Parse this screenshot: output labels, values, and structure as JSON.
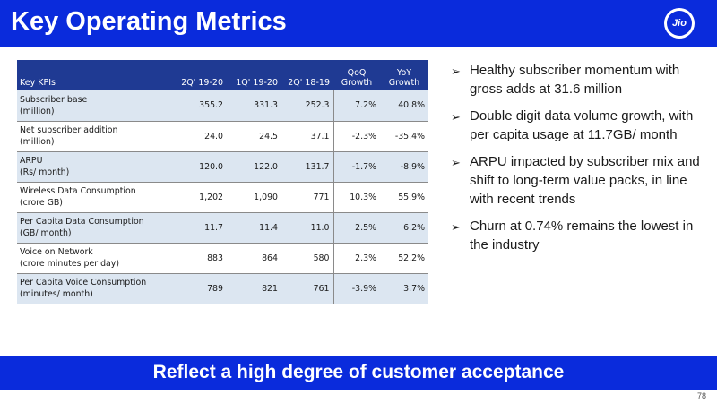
{
  "header": {
    "title": "Key Operating Metrics",
    "logo_text": "Jio",
    "color": "#0a2bdc"
  },
  "table": {
    "columns": [
      {
        "line1": "",
        "line2": "Key KPIs"
      },
      {
        "line1": "",
        "line2": "2Q' 19-20"
      },
      {
        "line1": "",
        "line2": "1Q' 19-20"
      },
      {
        "line1": "",
        "line2": "2Q' 18-19"
      },
      {
        "line1": "QoQ",
        "line2": "Growth"
      },
      {
        "line1": "YoY",
        "line2": "Growth"
      }
    ],
    "rows": [
      {
        "kpi_l1": "Subscriber base",
        "kpi_l2": "(million)",
        "v1": "355.2",
        "v2": "331.3",
        "v3": "252.3",
        "qoq": "7.2%",
        "yoy": "40.8%"
      },
      {
        "kpi_l1": "Net subscriber addition",
        "kpi_l2": "(million)",
        "v1": "24.0",
        "v2": "24.5",
        "v3": "37.1",
        "qoq": "-2.3%",
        "yoy": "-35.4%"
      },
      {
        "kpi_l1": "ARPU",
        "kpi_l2": "(Rs/ month)",
        "v1": "120.0",
        "v2": "122.0",
        "v3": "131.7",
        "qoq": "-1.7%",
        "yoy": "-8.9%"
      },
      {
        "kpi_l1": "Wireless Data Consumption",
        "kpi_l2": "(crore GB)",
        "v1": "1,202",
        "v2": "1,090",
        "v3": "771",
        "qoq": "10.3%",
        "yoy": "55.9%"
      },
      {
        "kpi_l1": "Per Capita Data Consumption",
        "kpi_l2": "(GB/ month)",
        "v1": "11.7",
        "v2": "11.4",
        "v3": "11.0",
        "qoq": "2.5%",
        "yoy": "6.2%"
      },
      {
        "kpi_l1": "Voice on Network",
        "kpi_l2": "(crore minutes per day)",
        "v1": "883",
        "v2": "864",
        "v3": "580",
        "qoq": "2.3%",
        "yoy": "52.2%"
      },
      {
        "kpi_l1": "Per Capita Voice Consumption",
        "kpi_l2": "(minutes/ month)",
        "v1": "789",
        "v2": "821",
        "v3": "761",
        "qoq": "-3.9%",
        "yoy": "3.7%"
      }
    ]
  },
  "bullets": [
    {
      "arrow": "➢",
      "text": "Healthy subscriber momentum with gross adds at 31.6 million"
    },
    {
      "arrow": "➢",
      "text": "Double digit data volume growth, with per capita usage at 11.7GB/ month"
    },
    {
      "arrow": "➢",
      "text": "ARPU impacted by subscriber mix and shift to long-term value packs, in line with recent trends"
    },
    {
      "arrow": "➢",
      "text": "Churn at 0.74% remains the lowest in the industry"
    }
  ],
  "banner": {
    "text": "Reflect a high degree of customer acceptance"
  },
  "page_number": "78"
}
